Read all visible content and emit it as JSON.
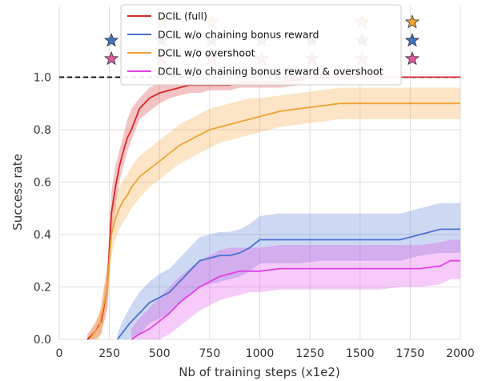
{
  "chart_data": {
    "type": "line",
    "xlabel": "Nb of training steps (x1e2)",
    "ylabel": "Success rate",
    "xlim": [
      0,
      2000
    ],
    "ylim": [
      0,
      1.27
    ],
    "xticks": [
      0,
      250,
      500,
      750,
      1000,
      1250,
      1500,
      1750,
      2000
    ],
    "yticks": [
      0.0,
      0.2,
      0.4,
      0.6,
      0.8,
      1.0
    ],
    "xtick_labels": [
      "0",
      "250",
      "500",
      "750",
      "1000",
      "1250",
      "1500",
      "1750",
      "2000"
    ],
    "ytick_labels": [
      "0.0",
      "0.2",
      "0.4",
      "0.6",
      "0.8",
      "1.0"
    ],
    "grid": true,
    "legend_position": "top-center",
    "reference_line": {
      "y": 1.0,
      "style": "dashed",
      "color": "#111111"
    },
    "series": [
      {
        "name": "DCIL (full)",
        "color": "#d62728",
        "x": [
          140,
          180,
          210,
          240,
          260,
          280,
          300,
          320,
          340,
          360,
          380,
          400,
          450,
          500,
          550,
          600,
          650,
          700,
          750,
          800,
          850,
          900,
          1000,
          1100,
          1200,
          1250,
          1300,
          1500,
          1750,
          2000
        ],
        "mean": [
          0.0,
          0.03,
          0.07,
          0.2,
          0.48,
          0.58,
          0.66,
          0.72,
          0.77,
          0.8,
          0.84,
          0.88,
          0.92,
          0.94,
          0.95,
          0.96,
          0.97,
          0.97,
          0.97,
          0.97,
          0.97,
          0.98,
          0.98,
          0.98,
          0.99,
          1.0,
          1.0,
          1.0,
          1.0,
          1.0
        ],
        "lower": [
          0.0,
          0.0,
          0.02,
          0.12,
          0.4,
          0.5,
          0.6,
          0.66,
          0.72,
          0.76,
          0.8,
          0.84,
          0.87,
          0.9,
          0.92,
          0.93,
          0.94,
          0.94,
          0.95,
          0.95,
          0.95,
          0.96,
          0.96,
          0.96,
          0.97,
          1.0,
          1.0,
          1.0,
          1.0,
          1.0
        ],
        "upper": [
          0.02,
          0.06,
          0.12,
          0.28,
          0.56,
          0.66,
          0.72,
          0.78,
          0.84,
          0.88,
          0.9,
          0.92,
          0.96,
          0.98,
          0.99,
          0.99,
          1.0,
          1.0,
          1.0,
          1.0,
          1.0,
          1.0,
          1.0,
          1.0,
          1.0,
          1.0,
          1.0,
          1.0,
          1.0,
          1.0
        ]
      },
      {
        "name": "DCIL w/o chaining bonus reward",
        "color": "#4c72d0",
        "x": [
          290,
          310,
          350,
          400,
          450,
          500,
          550,
          600,
          650,
          700,
          750,
          800,
          850,
          900,
          950,
          1000,
          1100,
          1200,
          1300,
          1400,
          1500,
          1600,
          1700,
          1800,
          1900,
          2000
        ],
        "mean": [
          0.0,
          0.02,
          0.06,
          0.1,
          0.14,
          0.16,
          0.18,
          0.22,
          0.26,
          0.3,
          0.31,
          0.32,
          0.32,
          0.33,
          0.35,
          0.38,
          0.38,
          0.38,
          0.38,
          0.38,
          0.38,
          0.38,
          0.38,
          0.4,
          0.42,
          0.42
        ],
        "lower": [
          0.0,
          0.0,
          0.0,
          0.02,
          0.06,
          0.08,
          0.1,
          0.14,
          0.17,
          0.2,
          0.21,
          0.22,
          0.23,
          0.24,
          0.26,
          0.29,
          0.29,
          0.29,
          0.3,
          0.3,
          0.3,
          0.3,
          0.3,
          0.32,
          0.33,
          0.33
        ],
        "upper": [
          0.02,
          0.06,
          0.12,
          0.18,
          0.22,
          0.25,
          0.27,
          0.31,
          0.35,
          0.39,
          0.4,
          0.41,
          0.41,
          0.42,
          0.44,
          0.47,
          0.48,
          0.48,
          0.48,
          0.48,
          0.48,
          0.48,
          0.48,
          0.5,
          0.52,
          0.52
        ]
      },
      {
        "name": "DCIL w/o overshoot",
        "color": "#f0a233",
        "x": [
          150,
          200,
          240,
          260,
          280,
          300,
          320,
          340,
          360,
          380,
          400,
          450,
          500,
          550,
          600,
          650,
          700,
          750,
          800,
          850,
          900,
          950,
          1000,
          1100,
          1200,
          1300,
          1400,
          1500,
          1750,
          2000
        ],
        "mean": [
          0.0,
          0.05,
          0.2,
          0.4,
          0.46,
          0.5,
          0.53,
          0.55,
          0.58,
          0.6,
          0.62,
          0.65,
          0.68,
          0.71,
          0.74,
          0.76,
          0.78,
          0.8,
          0.81,
          0.82,
          0.83,
          0.84,
          0.85,
          0.87,
          0.88,
          0.89,
          0.9,
          0.9,
          0.9,
          0.9
        ],
        "lower": [
          0.0,
          0.0,
          0.12,
          0.32,
          0.38,
          0.42,
          0.45,
          0.47,
          0.5,
          0.52,
          0.54,
          0.58,
          0.61,
          0.64,
          0.67,
          0.69,
          0.71,
          0.73,
          0.75,
          0.76,
          0.77,
          0.78,
          0.79,
          0.81,
          0.82,
          0.83,
          0.84,
          0.84,
          0.84,
          0.84
        ],
        "upper": [
          0.02,
          0.1,
          0.28,
          0.48,
          0.54,
          0.58,
          0.61,
          0.63,
          0.66,
          0.68,
          0.7,
          0.73,
          0.76,
          0.79,
          0.82,
          0.84,
          0.86,
          0.88,
          0.89,
          0.9,
          0.91,
          0.92,
          0.92,
          0.93,
          0.94,
          0.95,
          0.96,
          0.96,
          0.96,
          0.96
        ]
      },
      {
        "name": "DCIL w/o chaining bonus reward & overshoot",
        "color": "#e040e8",
        "x": [
          360,
          400,
          450,
          500,
          550,
          600,
          650,
          700,
          750,
          800,
          850,
          900,
          950,
          1000,
          1100,
          1200,
          1300,
          1400,
          1500,
          1600,
          1700,
          1800,
          1900,
          1950,
          2000
        ],
        "mean": [
          0.0,
          0.02,
          0.04,
          0.07,
          0.1,
          0.14,
          0.17,
          0.2,
          0.22,
          0.24,
          0.25,
          0.26,
          0.26,
          0.26,
          0.27,
          0.27,
          0.27,
          0.27,
          0.27,
          0.27,
          0.27,
          0.27,
          0.28,
          0.3,
          0.3
        ],
        "lower": [
          0.0,
          0.0,
          0.0,
          0.0,
          0.02,
          0.05,
          0.08,
          0.11,
          0.13,
          0.15,
          0.16,
          0.17,
          0.18,
          0.18,
          0.19,
          0.19,
          0.19,
          0.19,
          0.19,
          0.19,
          0.2,
          0.2,
          0.21,
          0.23,
          0.23
        ],
        "upper": [
          0.04,
          0.08,
          0.12,
          0.16,
          0.2,
          0.24,
          0.27,
          0.3,
          0.32,
          0.34,
          0.35,
          0.35,
          0.35,
          0.35,
          0.36,
          0.36,
          0.36,
          0.36,
          0.36,
          0.36,
          0.36,
          0.36,
          0.37,
          0.38,
          0.38
        ]
      }
    ],
    "star_markers": [
      {
        "x": 260,
        "y": 1.14,
        "color": "#3f73bd"
      },
      {
        "x": 260,
        "y": 1.07,
        "color": "#e2579e"
      },
      {
        "x": 510,
        "y": 1.21,
        "color": "#f0a233"
      },
      {
        "x": 510,
        "y": 1.14,
        "color": "#3f73bd"
      },
      {
        "x": 510,
        "y": 1.07,
        "color": "#e2579e"
      },
      {
        "x": 760,
        "y": 1.21,
        "color": "#f0a233"
      },
      {
        "x": 760,
        "y": 1.14,
        "color": "#3f73bd"
      },
      {
        "x": 760,
        "y": 1.07,
        "color": "#e2579e"
      },
      {
        "x": 1010,
        "y": 1.14,
        "color": "#3f73bd"
      },
      {
        "x": 1010,
        "y": 1.07,
        "color": "#e2579e"
      },
      {
        "x": 1260,
        "y": 1.14,
        "color": "#3f73bd"
      },
      {
        "x": 1260,
        "y": 1.07,
        "color": "#e2579e"
      },
      {
        "x": 1510,
        "y": 1.21,
        "color": "#f0a233"
      },
      {
        "x": 1510,
        "y": 1.14,
        "color": "#3f73bd"
      },
      {
        "x": 1510,
        "y": 1.07,
        "color": "#e2579e"
      },
      {
        "x": 1760,
        "y": 1.21,
        "color": "#f0a233"
      },
      {
        "x": 1760,
        "y": 1.14,
        "color": "#3f73bd"
      },
      {
        "x": 1760,
        "y": 1.07,
        "color": "#e2579e"
      }
    ]
  }
}
